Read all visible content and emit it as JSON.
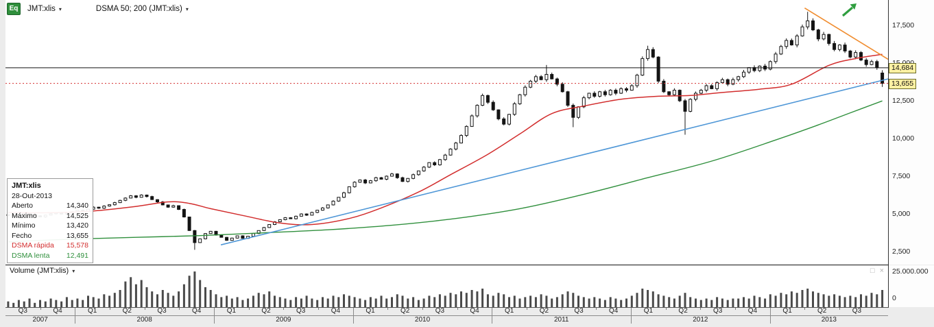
{
  "toolbar": {
    "instrument_type_badge": "Eq",
    "instrument": "JMT:xlis",
    "study": "DSMA 50; 200 (JMT:xlis)"
  },
  "tooltip": {
    "title": "JMT:xlis",
    "date": "28-Out-2013",
    "rows": [
      {
        "label": "Aberto",
        "value": "14,340",
        "color": "#111111"
      },
      {
        "label": "Máximo",
        "value": "14,525",
        "color": "#111111"
      },
      {
        "label": "Mínimo",
        "value": "13,420",
        "color": "#111111"
      },
      {
        "label": "Fecho",
        "value": "13,655",
        "color": "#111111"
      },
      {
        "label": "DSMA rápida",
        "value": "15,578",
        "color": "#d22d2d"
      },
      {
        "label": "DSMA lenta",
        "value": "12,491",
        "color": "#2f8f3c"
      }
    ]
  },
  "price_axis": {
    "ticks": [
      {
        "label": "17,500",
        "value": 17500
      },
      {
        "label": "15,000",
        "value": 15000
      },
      {
        "label": "12,500",
        "value": 12500
      },
      {
        "label": "10,000",
        "value": 10000
      },
      {
        "label": "7,500",
        "value": 7500
      },
      {
        "label": "5,000",
        "value": 5000
      },
      {
        "label": "2,500",
        "value": 2500
      }
    ],
    "badges": [
      {
        "label": "14,684",
        "value": 14684
      },
      {
        "label": "13,655",
        "value": 13655
      }
    ]
  },
  "volume_panel": {
    "title": "Volume (JMT:xlis)",
    "max_label": "25.000.000",
    "min_label": "0",
    "max_millions": 25
  },
  "chart_data": {
    "type": "candlestick",
    "title": "JMT:xlis weekly candlesticks with DSMA 50 and DSMA 200 moving averages, horizontal line at 14,684 and last close 13,655",
    "ylim": [
      1640,
      19180
    ],
    "quarters_covered": 25.31,
    "xaxis": {
      "total_quarters": 25.4,
      "quarter_labels": [
        "Q3",
        "Q4",
        "Q1",
        "Q2",
        "Q3",
        "Q4",
        "Q1",
        "Q2",
        "Q3",
        "Q4",
        "Q1",
        "Q2",
        "Q3",
        "Q4",
        "Q1",
        "Q2",
        "Q3",
        "Q4",
        "Q1",
        "Q2",
        "Q3",
        "Q4",
        "Q1",
        "Q2",
        "Q3"
      ],
      "years": [
        {
          "label": "2007",
          "span": 2
        },
        {
          "label": "2008",
          "span": 4
        },
        {
          "label": "2009",
          "span": 4
        },
        {
          "label": "2010",
          "span": 4
        },
        {
          "label": "2011",
          "span": 4
        },
        {
          "label": "2012",
          "span": 4
        },
        {
          "label": "2013",
          "span": 3.4
        }
      ]
    },
    "closes": [
      4900,
      4850,
      4950,
      5050,
      4980,
      4880,
      4800,
      4920,
      5010,
      5080,
      4990,
      5060,
      5150,
      5250,
      5180,
      5320,
      5450,
      5380,
      5520,
      5610,
      5750,
      5900,
      6050,
      6200,
      6100,
      6250,
      6150,
      5950,
      5800,
      5600,
      5450,
      5550,
      5300,
      4800,
      3900,
      3100,
      3350,
      3700,
      3850,
      3600,
      3450,
      3250,
      3400,
      3550,
      3380,
      3520,
      3700,
      3900,
      4100,
      4300,
      4480,
      4620,
      4750,
      4680,
      4850,
      5000,
      4920,
      5100,
      5250,
      5400,
      5600,
      5850,
      6100,
      6400,
      6800,
      7100,
      7250,
      7050,
      7200,
      7400,
      7300,
      7500,
      7650,
      7400,
      7150,
      7350,
      7600,
      7850,
      8100,
      8400,
      8250,
      8600,
      8900,
      9300,
      9700,
      10200,
      10800,
      11500,
      12200,
      12850,
      12400,
      11900,
      11300,
      10950,
      11600,
      12300,
      12900,
      13400,
      13800,
      14100,
      13900,
      14250,
      13950,
      13600,
      13100,
      12200,
      11400,
      12100,
      12700,
      13000,
      12800,
      13100,
      12900,
      13200,
      13000,
      13300,
      13200,
      13500,
      14200,
      15300,
      15900,
      15400,
      13800,
      13100,
      12900,
      13200,
      12500,
      11800,
      12600,
      13000,
      13200,
      13500,
      13300,
      13700,
      13900,
      13600,
      13900,
      14100,
      14400,
      14700,
      14500,
      14800,
      14600,
      15100,
      15600,
      16100,
      16500,
      16200,
      16800,
      17400,
      17800,
      17200,
      16600,
      16900,
      16300,
      15900,
      16200,
      15800,
      15400,
      15700,
      15200,
      14900,
      15100,
      14700,
      13655
    ],
    "volumes_millions": [
      4,
      3,
      5,
      4,
      6,
      3,
      5,
      4,
      6,
      5,
      4,
      7,
      5,
      6,
      5,
      8,
      7,
      6,
      9,
      8,
      10,
      12,
      18,
      21,
      16,
      19,
      14,
      11,
      9,
      12,
      10,
      8,
      11,
      16,
      22,
      25,
      19,
      14,
      12,
      9,
      7,
      8,
      6,
      7,
      5,
      6,
      8,
      10,
      9,
      11,
      8,
      7,
      6,
      5,
      7,
      6,
      8,
      6,
      5,
      7,
      6,
      8,
      7,
      9,
      8,
      7,
      6,
      5,
      7,
      6,
      8,
      6,
      7,
      9,
      8,
      6,
      7,
      5,
      6,
      8,
      7,
      9,
      8,
      10,
      9,
      11,
      10,
      12,
      11,
      13,
      9,
      8,
      10,
      9,
      7,
      8,
      6,
      7,
      8,
      7,
      9,
      8,
      6,
      7,
      9,
      11,
      10,
      8,
      7,
      6,
      7,
      6,
      5,
      7,
      6,
      5,
      6,
      8,
      10,
      13,
      12,
      11,
      9,
      8,
      7,
      6,
      8,
      10,
      7,
      6,
      5,
      6,
      5,
      7,
      6,
      5,
      6,
      6,
      7,
      6,
      8,
      7,
      6,
      9,
      8,
      10,
      9,
      11,
      10,
      12,
      13,
      11,
      10,
      9,
      8,
      9,
      8,
      7,
      8,
      7,
      9,
      8,
      10,
      9,
      12
    ],
    "last_candle": {
      "open": 14340,
      "high": 14525,
      "low": 13420,
      "close": 13655
    },
    "wick_overrides": [
      {
        "i": 35,
        "low": 2620
      },
      {
        "i": 101,
        "high": 14870
      },
      {
        "i": 106,
        "low": 10750
      },
      {
        "i": 120,
        "high": 16150
      },
      {
        "i": 127,
        "low": 10250
      },
      {
        "i": 150,
        "high": 18400
      }
    ],
    "ma_fast": {
      "name": "DSMA 50 (rápida)",
      "color": "#d22d2d",
      "points": [
        [
          0,
          5100
        ],
        [
          8,
          5080
        ],
        [
          16,
          5200
        ],
        [
          24,
          5500
        ],
        [
          30,
          5800
        ],
        [
          34,
          5700
        ],
        [
          38,
          5350
        ],
        [
          44,
          4900
        ],
        [
          51,
          4400
        ],
        [
          57,
          4300
        ],
        [
          64,
          4700
        ],
        [
          70,
          5400
        ],
        [
          77,
          6450
        ],
        [
          83,
          7600
        ],
        [
          90,
          8950
        ],
        [
          96,
          10300
        ],
        [
          102,
          11650
        ],
        [
          108,
          12150
        ],
        [
          115,
          12600
        ],
        [
          122,
          12800
        ],
        [
          128,
          12850
        ],
        [
          134,
          13050
        ],
        [
          141,
          13270
        ],
        [
          147,
          13600
        ],
        [
          154,
          14850
        ],
        [
          159,
          15300
        ],
        [
          164,
          15578
        ]
      ]
    },
    "ma_slow": {
      "name": "DSMA 200 (lenta)",
      "color": "#2f8f3c",
      "points": [
        [
          0,
          3150
        ],
        [
          12,
          3330
        ],
        [
          24,
          3450
        ],
        [
          36,
          3560
        ],
        [
          48,
          3750
        ],
        [
          60,
          3950
        ],
        [
          72,
          4250
        ],
        [
          84,
          4700
        ],
        [
          96,
          5350
        ],
        [
          108,
          6300
        ],
        [
          120,
          7400
        ],
        [
          132,
          8500
        ],
        [
          144,
          9900
        ],
        [
          152,
          10900
        ],
        [
          158,
          11700
        ],
        [
          164,
          12491
        ]
      ]
    },
    "trendlines": [
      {
        "name": "support-blue",
        "color": "#4f97d7",
        "q1": 6.2,
        "p1": 2950,
        "q2": 25.4,
        "p2": 13950
      },
      {
        "name": "resistance-orange",
        "color": "#f08c2e",
        "q1": 23.0,
        "p1": 18650,
        "q2": 25.4,
        "p2": 15250
      }
    ],
    "hlines": [
      {
        "price": 14684,
        "color": "#111111",
        "style": "solid"
      },
      {
        "price": 13655,
        "color": "#d22d2d",
        "style": "dotted"
      }
    ]
  }
}
